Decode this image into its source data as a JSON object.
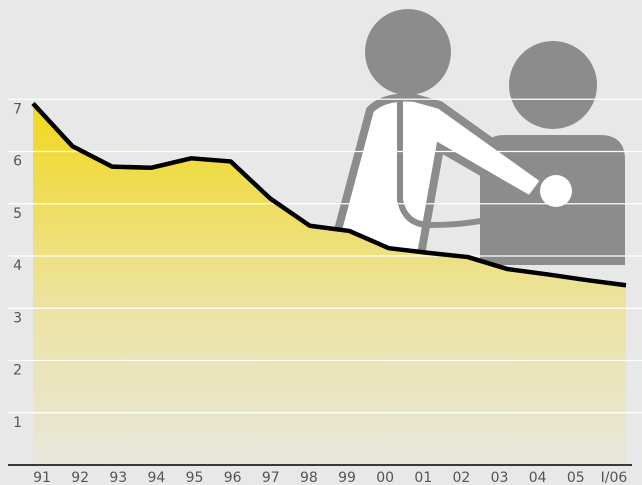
{
  "chart_data": {
    "type": "area",
    "categories": [
      "91",
      "92",
      "93",
      "94",
      "95",
      "96",
      "97",
      "98",
      "99",
      "00",
      "01",
      "02",
      "03",
      "04",
      "05",
      "I/06"
    ],
    "values": [
      6.92,
      6.1,
      5.71,
      5.69,
      5.87,
      5.81,
      5.1,
      4.58,
      4.48,
      4.15,
      4.06,
      3.98,
      3.75,
      3.65,
      3.54,
      3.44
    ],
    "color": "#000000",
    "ylim": [
      0,
      8.9
    ],
    "yticks": [
      1,
      2,
      3,
      4,
      5,
      6,
      7
    ],
    "grid": true
  }
}
